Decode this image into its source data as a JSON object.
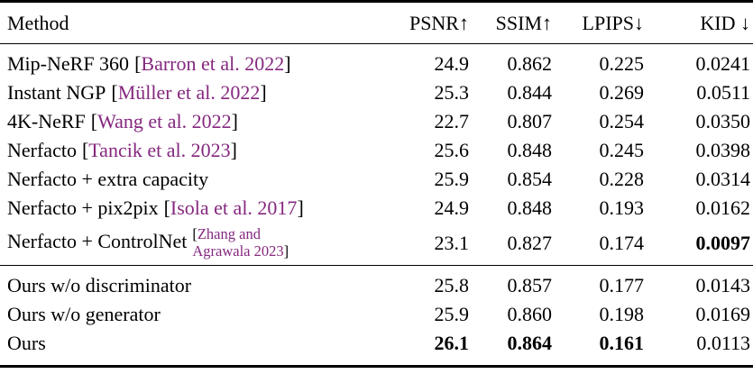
{
  "colors": {
    "citation": "#85287f",
    "text": "#000000",
    "rule": "#000000"
  },
  "table": {
    "punct": {
      "open_bracket": "[",
      "close_bracket": "]"
    },
    "columns": [
      {
        "key": "method",
        "label": "Method"
      },
      {
        "key": "psnr",
        "label": "PSNR↑"
      },
      {
        "key": "ssim",
        "label": "SSIM↑"
      },
      {
        "key": "lpips",
        "label": "LPIPS↓"
      },
      {
        "key": "kid",
        "label": "KID ↓"
      }
    ],
    "rows": [
      {
        "group": 1,
        "method": "Mip-NeRF 360",
        "cite": "Barron et al. 2022",
        "psnr": "24.9",
        "ssim": "0.862",
        "lpips": "0.225",
        "kid": "0.0241",
        "bold": []
      },
      {
        "group": 1,
        "method": "Instant NGP",
        "cite": "Müller et al. 2022",
        "psnr": "25.3",
        "ssim": "0.844",
        "lpips": "0.269",
        "kid": "0.0511",
        "bold": []
      },
      {
        "group": 1,
        "method": "4K-NeRF",
        "cite": "Wang et al. 2022",
        "psnr": "22.7",
        "ssim": "0.807",
        "lpips": "0.254",
        "kid": "0.0350",
        "bold": []
      },
      {
        "group": 1,
        "method": "Nerfacto",
        "cite": "Tancik et al. 2023",
        "psnr": "25.6",
        "ssim": "0.848",
        "lpips": "0.245",
        "kid": "0.0398",
        "bold": []
      },
      {
        "group": 1,
        "method": "Nerfacto + extra capacity",
        "cite": null,
        "psnr": "25.9",
        "ssim": "0.854",
        "lpips": "0.228",
        "kid": "0.0314",
        "bold": []
      },
      {
        "group": 1,
        "method": "Nerfacto + pix2pix",
        "cite": "Isola et al. 2017",
        "psnr": "24.9",
        "ssim": "0.848",
        "lpips": "0.193",
        "kid": "0.0162",
        "bold": []
      },
      {
        "group": 1,
        "method": "Nerfacto + ControlNet",
        "cite": null,
        "cite_lines": [
          "Zhang and",
          "Agrawala 2023"
        ],
        "psnr": "23.1",
        "ssim": "0.827",
        "lpips": "0.174",
        "kid": "0.0097",
        "bold": [
          "kid"
        ]
      },
      {
        "group": 2,
        "method": "Ours w/o discriminator",
        "cite": null,
        "psnr": "25.8",
        "ssim": "0.857",
        "lpips": "0.177",
        "kid": "0.0143",
        "bold": []
      },
      {
        "group": 2,
        "method": "Ours w/o generator",
        "cite": null,
        "psnr": "25.9",
        "ssim": "0.860",
        "lpips": "0.198",
        "kid": "0.0169",
        "bold": []
      },
      {
        "group": 2,
        "method": "Ours",
        "cite": null,
        "psnr": "26.1",
        "ssim": "0.864",
        "lpips": "0.161",
        "kid": "0.0113",
        "bold": [
          "psnr",
          "ssim",
          "lpips"
        ]
      }
    ]
  }
}
